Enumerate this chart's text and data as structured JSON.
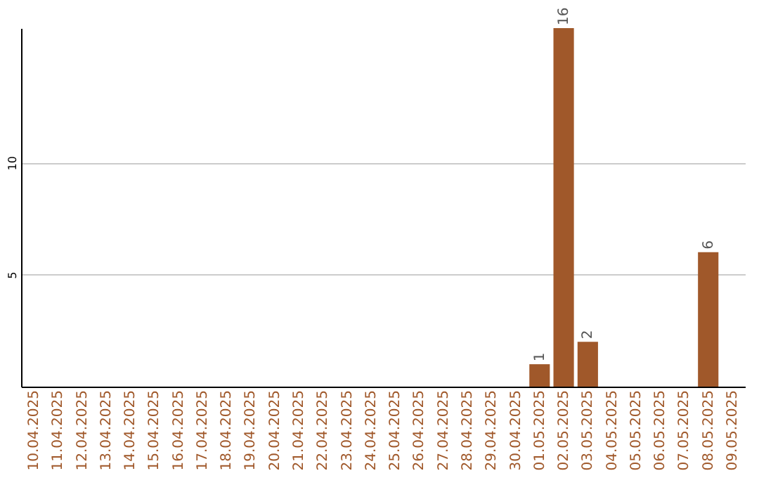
{
  "chart_data": {
    "type": "bar",
    "categories": [
      "10.04.2025",
      "11.04.2025",
      "12.04.2025",
      "13.04.2025",
      "14.04.2025",
      "15.04.2025",
      "16.04.2025",
      "17.04.2025",
      "18.04.2025",
      "19.04.2025",
      "20.04.2025",
      "21.04.2025",
      "22.04.2025",
      "23.04.2025",
      "24.04.2025",
      "25.04.2025",
      "26.04.2025",
      "27.04.2025",
      "28.04.2025",
      "29.04.2025",
      "30.04.2025",
      "01.05.2025",
      "02.05.2025",
      "03.05.2025",
      "04.05.2025",
      "05.05.2025",
      "06.05.2025",
      "07.05.2025",
      "08.05.2025",
      "09.05.2025"
    ],
    "values": [
      0,
      0,
      0,
      0,
      0,
      0,
      0,
      0,
      0,
      0,
      0,
      0,
      0,
      0,
      0,
      0,
      0,
      0,
      0,
      0,
      0,
      1,
      16,
      2,
      0,
      0,
      0,
      0,
      6,
      0
    ],
    "value_labels": [
      null,
      null,
      null,
      null,
      null,
      null,
      null,
      null,
      null,
      null,
      null,
      null,
      null,
      null,
      null,
      null,
      null,
      null,
      null,
      null,
      null,
      "1",
      "16",
      "2",
      null,
      null,
      null,
      null,
      "6",
      null
    ],
    "color": "#a0582a",
    "ylim": [
      0,
      16
    ],
    "yticks": [
      5,
      10
    ],
    "grid": "y"
  }
}
